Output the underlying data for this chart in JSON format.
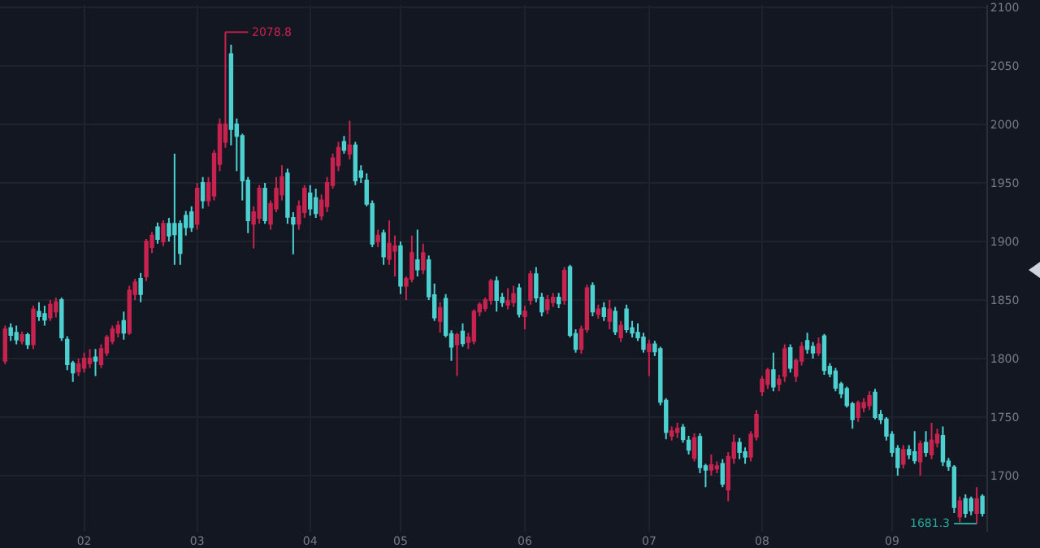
{
  "chart_data": {
    "type": "candlestick",
    "categories": [
      null,
      null,
      null,
      null,
      null,
      null,
      null,
      null,
      null,
      null,
      null,
      null,
      null,
      null,
      "02",
      null,
      null,
      null,
      null,
      null,
      null,
      null,
      null,
      null,
      null,
      null,
      null,
      null,
      null,
      null,
      null,
      null,
      null,
      null,
      "03",
      null,
      null,
      null,
      null,
      null,
      null,
      null,
      null,
      null,
      null,
      null,
      null,
      null,
      null,
      null,
      null,
      null,
      null,
      null,
      "04",
      null,
      null,
      null,
      null,
      null,
      null,
      null,
      null,
      null,
      null,
      null,
      null,
      null,
      null,
      null,
      "05",
      null,
      null,
      null,
      null,
      null,
      null,
      null,
      null,
      null,
      null,
      null,
      null,
      null,
      null,
      null,
      null,
      null,
      null,
      null,
      null,
      null,
      "06",
      null,
      null,
      null,
      null,
      null,
      null,
      null,
      null,
      null,
      null,
      null,
      null,
      null,
      null,
      null,
      null,
      null,
      null,
      null,
      null,
      null,
      "07",
      null,
      null,
      null,
      null,
      null,
      null,
      null,
      null,
      null,
      null,
      null,
      null,
      null,
      null,
      null,
      null,
      null,
      null,
      null,
      "08",
      null,
      null,
      null,
      null,
      null,
      null,
      null,
      null,
      null,
      null,
      null,
      null,
      null,
      null,
      null,
      null,
      null,
      null,
      null,
      null,
      null,
      null,
      "09",
      null,
      null,
      null,
      null,
      null,
      null,
      null,
      null,
      null,
      null,
      null,
      null,
      null,
      null,
      null,
      null
    ],
    "ohlc": [
      [
        1798,
        1828,
        1795,
        1825
      ],
      [
        1826,
        1830,
        1815,
        1820
      ],
      [
        1822,
        1828,
        1812,
        1816
      ],
      [
        1815,
        1823,
        1812,
        1820
      ],
      [
        1820,
        1822,
        1808,
        1812
      ],
      [
        1812,
        1845,
        1808,
        1842
      ],
      [
        1840,
        1848,
        1832,
        1836
      ],
      [
        1838,
        1845,
        1828,
        1833
      ],
      [
        1835,
        1850,
        1832,
        1846
      ],
      [
        1840,
        1852,
        1835,
        1848
      ],
      [
        1850,
        1852,
        1815,
        1818
      ],
      [
        1816,
        1819,
        1790,
        1795
      ],
      [
        1796,
        1798,
        1780,
        1788
      ],
      [
        1789,
        1800,
        1785,
        1795
      ],
      [
        1792,
        1805,
        1788,
        1800
      ],
      [
        1796,
        1808,
        1792,
        1800
      ],
      [
        1801,
        1808,
        1785,
        1798
      ],
      [
        1795,
        1812,
        1792,
        1808
      ],
      [
        1805,
        1820,
        1802,
        1818
      ],
      [
        1815,
        1828,
        1812,
        1825
      ],
      [
        1822,
        1832,
        1818,
        1828
      ],
      [
        1832,
        1840,
        1816,
        1822
      ],
      [
        1822,
        1862,
        1820,
        1858
      ],
      [
        1855,
        1868,
        1850,
        1865
      ],
      [
        1868,
        1873,
        1848,
        1855
      ],
      [
        1870,
        1902,
        1866,
        1900
      ],
      [
        1895,
        1908,
        1890,
        1905
      ],
      [
        1912,
        1916,
        1898,
        1902
      ],
      [
        1900,
        1918,
        1896,
        1915
      ],
      [
        1915,
        1920,
        1900,
        1905
      ],
      [
        1915,
        1975,
        1880,
        1906
      ],
      [
        1915,
        1918,
        1880,
        1890
      ],
      [
        1922,
        1926,
        1905,
        1912
      ],
      [
        1925,
        1930,
        1908,
        1912
      ],
      [
        1915,
        1950,
        1910,
        1945
      ],
      [
        1950,
        1955,
        1928,
        1935
      ],
      [
        1935,
        1955,
        1930,
        1950
      ],
      [
        1939,
        1978,
        1935,
        1975
      ],
      [
        1966,
        2005,
        1960,
        2000
      ],
      [
        1985,
        2078.8,
        1980,
        2000
      ],
      [
        2060,
        2068,
        1982,
        1996
      ],
      [
        2000,
        2005,
        1960,
        1990
      ],
      [
        1990,
        1992,
        1935,
        1952
      ],
      [
        1952,
        1955,
        1907,
        1918
      ],
      [
        1915,
        1930,
        1894,
        1925
      ],
      [
        1920,
        1948,
        1915,
        1945
      ],
      [
        1945,
        1950,
        1915,
        1918
      ],
      [
        1915,
        1935,
        1910,
        1932
      ],
      [
        1928,
        1955,
        1925,
        1945
      ],
      [
        1940,
        1965,
        1935,
        1955
      ],
      [
        1958,
        1962,
        1915,
        1921
      ],
      [
        1920,
        1925,
        1889,
        1915
      ],
      [
        1915,
        1935,
        1910,
        1930
      ],
      [
        1925,
        1948,
        1920,
        1945
      ],
      [
        1941,
        1948,
        1922,
        1928
      ],
      [
        1937,
        1945,
        1920,
        1924
      ],
      [
        1922,
        1940,
        1918,
        1935
      ],
      [
        1930,
        1955,
        1925,
        1950
      ],
      [
        1948,
        1975,
        1945,
        1971
      ],
      [
        1965,
        1985,
        1960,
        1980
      ],
      [
        1985,
        1990,
        1975,
        1978
      ],
      [
        1975,
        2003,
        1970,
        1982
      ],
      [
        1982,
        1985,
        1948,
        1952
      ],
      [
        1960,
        1965,
        1950,
        1955
      ],
      [
        1952,
        1958,
        1930,
        1932
      ],
      [
        1932,
        1935,
        1895,
        1898
      ],
      [
        1900,
        1910,
        1895,
        1905
      ],
      [
        1907,
        1910,
        1880,
        1887
      ],
      [
        1885,
        1918,
        1880,
        1898
      ],
      [
        1892,
        1905,
        1870,
        1896
      ],
      [
        1896,
        1900,
        1855,
        1862
      ],
      [
        1862,
        1870,
        1850,
        1868
      ],
      [
        1868,
        1905,
        1865,
        1890
      ],
      [
        1884,
        1910,
        1870,
        1876
      ],
      [
        1876,
        1898,
        1872,
        1890
      ],
      [
        1884,
        1888,
        1850,
        1853
      ],
      [
        1854,
        1864,
        1832,
        1835
      ],
      [
        1832,
        1848,
        1822,
        1843
      ],
      [
        1851,
        1855,
        1818,
        1820
      ],
      [
        1821,
        1824,
        1798,
        1810
      ],
      [
        1812,
        1822,
        1785,
        1820
      ],
      [
        1823,
        1830,
        1810,
        1813
      ],
      [
        1814,
        1822,
        1808,
        1818
      ],
      [
        1815,
        1842,
        1812,
        1840
      ],
      [
        1840,
        1848,
        1836,
        1846
      ],
      [
        1843,
        1852,
        1840,
        1850
      ],
      [
        1850,
        1868,
        1846,
        1866
      ],
      [
        1866,
        1870,
        1840,
        1850
      ],
      [
        1852,
        1856,
        1844,
        1848
      ],
      [
        1846,
        1860,
        1842,
        1849
      ],
      [
        1848,
        1862,
        1844,
        1855
      ],
      [
        1860,
        1864,
        1835,
        1838
      ],
      [
        1836,
        1845,
        1825,
        1840
      ],
      [
        1850,
        1875,
        1846,
        1872
      ],
      [
        1872,
        1878,
        1848,
        1852
      ],
      [
        1852,
        1856,
        1836,
        1840
      ],
      [
        1842,
        1854,
        1838,
        1850
      ],
      [
        1848,
        1856,
        1844,
        1852
      ],
      [
        1852,
        1856,
        1843,
        1847
      ],
      [
        1850,
        1878,
        1846,
        1875
      ],
      [
        1878,
        1880,
        1818,
        1820
      ],
      [
        1821,
        1825,
        1805,
        1808
      ],
      [
        1808,
        1828,
        1804,
        1825
      ],
      [
        1825,
        1863,
        1822,
        1860
      ],
      [
        1862,
        1865,
        1836,
        1840
      ],
      [
        1838,
        1846,
        1834,
        1842
      ],
      [
        1843,
        1848,
        1832,
        1836
      ],
      [
        1832,
        1850,
        1825,
        1842
      ],
      [
        1840,
        1844,
        1820,
        1823
      ],
      [
        1818,
        1832,
        1814,
        1828
      ],
      [
        1842,
        1846,
        1822,
        1825
      ],
      [
        1826,
        1832,
        1818,
        1822
      ],
      [
        1822,
        1830,
        1815,
        1818
      ],
      [
        1818,
        1822,
        1805,
        1808
      ],
      [
        1806,
        1816,
        1785,
        1812
      ],
      [
        1812,
        1815,
        1802,
        1806
      ],
      [
        1808,
        1810,
        1760,
        1763
      ],
      [
        1764,
        1766,
        1731,
        1737
      ],
      [
        1734,
        1742,
        1730,
        1738
      ],
      [
        1737,
        1745,
        1732,
        1740
      ],
      [
        1741,
        1744,
        1728,
        1731
      ],
      [
        1730,
        1734,
        1718,
        1722
      ],
      [
        1715,
        1736,
        1712,
        1732
      ],
      [
        1733,
        1736,
        1702,
        1707
      ],
      [
        1708,
        1710,
        1690,
        1705
      ],
      [
        1705,
        1718,
        1700,
        1709
      ],
      [
        1706,
        1712,
        1702,
        1708
      ],
      [
        1710,
        1714,
        1690,
        1693
      ],
      [
        1688,
        1720,
        1678,
        1716
      ],
      [
        1715,
        1735,
        1710,
        1728
      ],
      [
        1728,
        1732,
        1714,
        1720
      ],
      [
        1720,
        1724,
        1710,
        1716
      ],
      [
        1716,
        1738,
        1712,
        1735
      ],
      [
        1733,
        1756,
        1730,
        1752
      ],
      [
        1772,
        1785,
        1768,
        1782
      ],
      [
        1778,
        1792,
        1774,
        1790
      ],
      [
        1790,
        1805,
        1772,
        1776
      ],
      [
        1778,
        1786,
        1772,
        1782
      ],
      [
        1785,
        1812,
        1780,
        1808
      ],
      [
        1809,
        1812,
        1788,
        1792
      ],
      [
        1785,
        1800,
        1780,
        1798
      ],
      [
        1798,
        1814,
        1794,
        1810
      ],
      [
        1815,
        1822,
        1804,
        1808
      ],
      [
        1810,
        1814,
        1800,
        1805
      ],
      [
        1805,
        1818,
        1802,
        1812
      ],
      [
        1819,
        1821,
        1786,
        1790
      ],
      [
        1793,
        1796,
        1784,
        1787
      ],
      [
        1789,
        1792,
        1772,
        1775
      ],
      [
        1778,
        1780,
        1766,
        1770
      ],
      [
        1774,
        1776,
        1758,
        1760
      ],
      [
        1761,
        1763,
        1740,
        1748
      ],
      [
        1750,
        1764,
        1746,
        1762
      ],
      [
        1758,
        1766,
        1754,
        1762
      ],
      [
        1760,
        1772,
        1756,
        1768
      ],
      [
        1771,
        1774,
        1748,
        1750
      ],
      [
        1752,
        1756,
        1744,
        1748
      ],
      [
        1748,
        1750,
        1730,
        1734
      ],
      [
        1735,
        1738,
        1716,
        1720
      ],
      [
        1723,
        1726,
        1700,
        1707
      ],
      [
        1710,
        1726,
        1706,
        1722
      ],
      [
        1722,
        1726,
        1714,
        1718
      ],
      [
        1720,
        1738,
        1710,
        1713
      ],
      [
        1712,
        1730,
        1700,
        1727
      ],
      [
        1728,
        1738,
        1716,
        1720
      ],
      [
        1718,
        1745,
        1714,
        1730
      ],
      [
        1728,
        1740,
        1724,
        1735
      ],
      [
        1734,
        1742,
        1708,
        1712
      ],
      [
        1712,
        1715,
        1704,
        1708
      ],
      [
        1707,
        1709,
        1668,
        1673
      ],
      [
        1665,
        1682,
        1660,
        1678
      ],
      [
        1680,
        1684,
        1664,
        1668
      ],
      [
        1680,
        1682,
        1666,
        1670
      ],
      [
        1668,
        1690,
        1659,
        1680
      ],
      [
        1682,
        1684,
        1665,
        1668
      ]
    ],
    "colors": [
      "#c8234f",
      "#4dd0d0",
      "#4dd0d0",
      "#c8234f",
      "#4dd0d0",
      "#c8234f",
      "#4dd0d0",
      "#4dd0d0",
      "#c8234f",
      "#c8234f",
      "#4dd0d0",
      "#4dd0d0",
      "#4dd0d0",
      "#c8234f",
      "#c8234f",
      "#c8234f",
      "#4dd0d0",
      "#c8234f",
      "#c8234f",
      "#c8234f",
      "#c8234f",
      "#4dd0d0",
      "#c8234f",
      "#c8234f",
      "#4dd0d0",
      "#c8234f",
      "#c8234f",
      "#4dd0d0",
      "#c8234f",
      "#4dd0d0",
      "#4dd0d0",
      "#4dd0d0",
      "#4dd0d0",
      "#4dd0d0",
      "#c8234f",
      "#4dd0d0",
      "#c8234f",
      "#c8234f",
      "#c8234f",
      "#c8234f",
      "#4dd0d0",
      "#4dd0d0",
      "#4dd0d0",
      "#4dd0d0",
      "#c8234f",
      "#c8234f",
      "#4dd0d0",
      "#c8234f",
      "#c8234f",
      "#c8234f",
      "#4dd0d0",
      "#4dd0d0",
      "#c8234f",
      "#c8234f",
      "#4dd0d0",
      "#4dd0d0",
      "#c8234f",
      "#c8234f",
      "#c8234f",
      "#c8234f",
      "#4dd0d0",
      "#c8234f",
      "#4dd0d0",
      "#4dd0d0",
      "#4dd0d0",
      "#4dd0d0",
      "#c8234f",
      "#4dd0d0",
      "#c8234f",
      "#c8234f",
      "#4dd0d0",
      "#c8234f",
      "#c8234f",
      "#4dd0d0",
      "#c8234f",
      "#4dd0d0",
      "#4dd0d0",
      "#c8234f",
      "#4dd0d0",
      "#4dd0d0",
      "#c8234f",
      "#4dd0d0",
      "#c8234f",
      "#c8234f",
      "#c8234f",
      "#c8234f",
      "#c8234f",
      "#4dd0d0",
      "#4dd0d0",
      "#c8234f",
      "#c8234f",
      "#4dd0d0",
      "#c8234f",
      "#c8234f",
      "#4dd0d0",
      "#4dd0d0",
      "#c8234f",
      "#c8234f",
      "#4dd0d0",
      "#c8234f",
      "#4dd0d0",
      "#4dd0d0",
      "#c8234f",
      "#c8234f",
      "#4dd0d0",
      "#c8234f",
      "#4dd0d0",
      "#c8234f",
      "#4dd0d0",
      "#c8234f",
      "#4dd0d0",
      "#4dd0d0",
      "#4dd0d0",
      "#4dd0d0",
      "#c8234f",
      "#4dd0d0",
      "#4dd0d0",
      "#4dd0d0",
      "#c8234f",
      "#c8234f",
      "#4dd0d0",
      "#4dd0d0",
      "#c8234f",
      "#4dd0d0",
      "#4dd0d0",
      "#c8234f",
      "#c8234f",
      "#4dd0d0",
      "#c8234f",
      "#c8234f",
      "#4dd0d0",
      "#4dd0d0",
      "#c8234f",
      "#c8234f",
      "#c8234f",
      "#c8234f",
      "#4dd0d0",
      "#c8234f",
      "#c8234f",
      "#4dd0d0",
      "#c8234f",
      "#c8234f",
      "#4dd0d0",
      "#4dd0d0",
      "#c8234f",
      "#4dd0d0",
      "#4dd0d0",
      "#4dd0d0",
      "#4dd0d0",
      "#4dd0d0",
      "#4dd0d0",
      "#c8234f",
      "#c8234f",
      "#c8234f",
      "#4dd0d0",
      "#4dd0d0",
      "#4dd0d0",
      "#4dd0d0",
      "#4dd0d0",
      "#c8234f",
      "#4dd0d0",
      "#4dd0d0",
      "#c8234f",
      "#4dd0d0",
      "#c8234f",
      "#c8234f",
      "#4dd0d0",
      "#4dd0d0",
      "#4dd0d0",
      "#c8234f",
      "#4dd0d0",
      "#4dd0d0",
      "#c8234f",
      "#4dd0d0"
    ],
    "ylim": [
      1652,
      2102
    ],
    "yticks": [
      1700,
      1750,
      1800,
      1850,
      1900,
      1950,
      2000,
      2050,
      2100
    ],
    "grid": true,
    "annotations": [
      "2078.8",
      "1681.3"
    ]
  }
}
